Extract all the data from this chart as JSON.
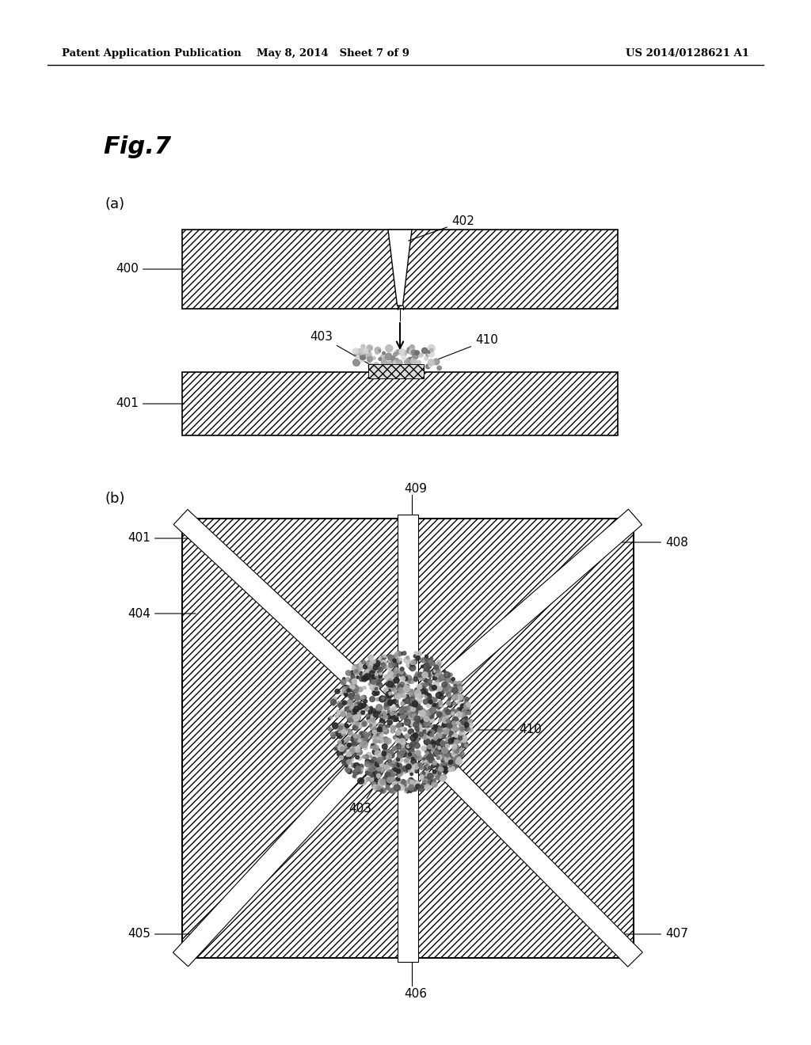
{
  "header_left": "Patent Application Publication",
  "header_mid": "May 8, 2014   Sheet 7 of 9",
  "header_right": "US 2014/0128621 A1",
  "fig_title": "Fig.7",
  "bg_color": "#ffffff",
  "label_a": "(a)",
  "label_b": "(b)"
}
